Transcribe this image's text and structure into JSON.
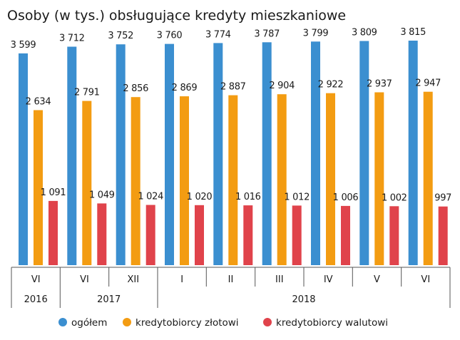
{
  "chart_data": {
    "type": "bar",
    "title": "Osoby (w tys.) obsługujące kredyty mieszkaniowe",
    "categories": [
      "VI",
      "VI",
      "XII",
      "I",
      "II",
      "III",
      "IV",
      "V",
      "VI"
    ],
    "year_groups": [
      {
        "label": "2016",
        "start": 0,
        "end": 0
      },
      {
        "label": "2017",
        "start": 1,
        "end": 2
      },
      {
        "label": "2018",
        "start": 3,
        "end": 8
      }
    ],
    "series": [
      {
        "name": "ogółem",
        "color": "#3b8fd0",
        "values": [
          3599,
          3712,
          3752,
          3760,
          3774,
          3787,
          3799,
          3809,
          3815
        ],
        "labels": [
          "3 599",
          "3 712",
          "3 752",
          "3 760",
          "3 774",
          "3 787",
          "3 799",
          "3 809",
          "3 815"
        ]
      },
      {
        "name": "kredytobiorcy złotowi",
        "color": "#f39c12",
        "values": [
          2634,
          2791,
          2856,
          2869,
          2887,
          2904,
          2922,
          2937,
          2947
        ],
        "labels": [
          "2 634",
          "2 791",
          "2 856",
          "2 869",
          "2 887",
          "2 904",
          "2 922",
          "2 937",
          "2 947"
        ]
      },
      {
        "name": "kredytobiorcy walutowi",
        "color": "#e0434b",
        "values": [
          1091,
          1049,
          1024,
          1020,
          1016,
          1012,
          1006,
          1002,
          997
        ],
        "labels": [
          "1 091",
          "1 049",
          "1 024",
          "1 020",
          "1 016",
          "1 012",
          "1 006",
          "1 002",
          "997"
        ]
      }
    ],
    "xlabel": "",
    "ylabel": "",
    "ylim": [
      0,
      3900
    ],
    "grid": false,
    "legend_position": "bottom"
  }
}
